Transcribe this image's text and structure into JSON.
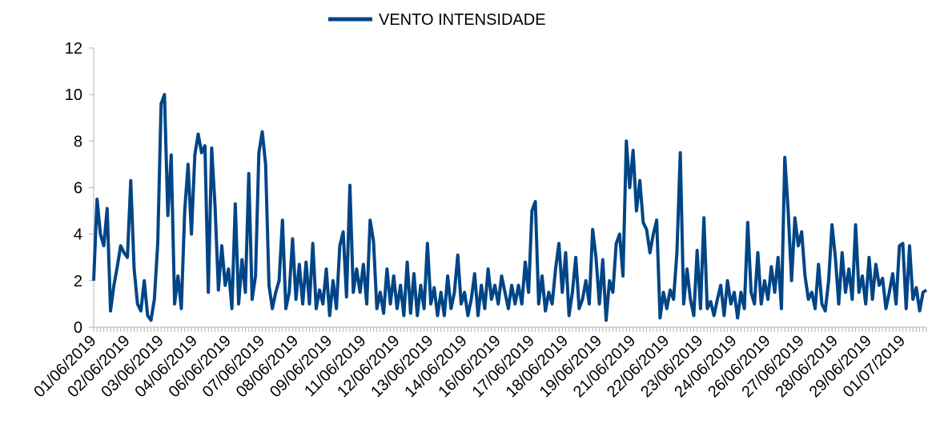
{
  "chart_data": {
    "type": "line",
    "categories": [
      "01/06/2019",
      null,
      null,
      null,
      null,
      null,
      null,
      null,
      null,
      null,
      "02/06/2019",
      null,
      null,
      null,
      null,
      null,
      null,
      null,
      null,
      null,
      "03/06/2019",
      null,
      null,
      null,
      null,
      null,
      null,
      null,
      null,
      null,
      "04/06/2019",
      null,
      null,
      null,
      null,
      null,
      null,
      null,
      null,
      null,
      "06/06/2019",
      null,
      null,
      null,
      null,
      null,
      null,
      null,
      null,
      null,
      "07/06/2019",
      null,
      null,
      null,
      null,
      null,
      null,
      null,
      null,
      null,
      "08/06/2019",
      null,
      null,
      null,
      null,
      null,
      null,
      null,
      null,
      null,
      "09/06/2019",
      null,
      null,
      null,
      null,
      null,
      null,
      null,
      null,
      null,
      "11/06/2019",
      null,
      null,
      null,
      null,
      null,
      null,
      null,
      null,
      null,
      "12/06/2019",
      null,
      null,
      null,
      null,
      null,
      null,
      null,
      null,
      null,
      "13/06/2019",
      null,
      null,
      null,
      null,
      null,
      null,
      null,
      null,
      null,
      "14/06/2019",
      null,
      null,
      null,
      null,
      null,
      null,
      null,
      null,
      null,
      "16/06/2019",
      null,
      null,
      null,
      null,
      null,
      null,
      null,
      null,
      null,
      "17/06/2019",
      null,
      null,
      null,
      null,
      null,
      null,
      null,
      null,
      null,
      "18/06/2019",
      null,
      null,
      null,
      null,
      null,
      null,
      null,
      null,
      null,
      "19/06/2019",
      null,
      null,
      null,
      null,
      null,
      null,
      null,
      null,
      null,
      "21/06/2019",
      null,
      null,
      null,
      null,
      null,
      null,
      null,
      null,
      null,
      "22/06/2019",
      null,
      null,
      null,
      null,
      null,
      null,
      null,
      null,
      null,
      "23/06/2019",
      null,
      null,
      null,
      null,
      null,
      null,
      null,
      null,
      null,
      "24/06/2019",
      null,
      null,
      null,
      null,
      null,
      null,
      null,
      null,
      null,
      "26/06/2019",
      null,
      null,
      null,
      null,
      null,
      null,
      null,
      null,
      null,
      "27/06/2019",
      null,
      null,
      null,
      null,
      null,
      null,
      null,
      null,
      null,
      "28/06/2019",
      null,
      null,
      null,
      null,
      null,
      null,
      null,
      null,
      null,
      "29/06/2019",
      null,
      null,
      null,
      null,
      null,
      null,
      null,
      null,
      null,
      "01/07/2019",
      null,
      null,
      null,
      null,
      null,
      null,
      null
    ],
    "series": [
      {
        "name": "VENTO INTENSIDADE",
        "color": "#004586",
        "values": [
          2,
          5.5,
          4,
          3.5,
          5.1,
          0.7,
          1.8,
          2.6,
          3.5,
          3.2,
          3.0,
          6.3,
          2.5,
          1.0,
          0.7,
          2.0,
          0.5,
          0.3,
          1.2,
          3.6,
          9.6,
          10.0,
          4.8,
          7.4,
          1.0,
          2.2,
          0.8,
          5.0,
          7.0,
          4.0,
          7.4,
          8.3,
          7.5,
          7.8,
          1.5,
          7.7,
          5.2,
          1.6,
          3.5,
          1.8,
          2.5,
          0.8,
          5.3,
          1.0,
          2.9,
          1.5,
          6.6,
          1.2,
          2.2,
          7.5,
          8.4,
          7.0,
          1.8,
          0.8,
          1.5,
          2.0,
          4.6,
          0.8,
          1.5,
          3.8,
          1.2,
          2.7,
          1.0,
          2.8,
          1.0,
          3.6,
          0.8,
          1.6,
          1.0,
          2.5,
          0.5,
          2.0,
          0.8,
          3.5,
          4.1,
          1.3,
          6.1,
          1.5,
          2.5,
          1.5,
          2.7,
          1.0,
          4.6,
          3.7,
          0.8,
          1.5,
          0.6,
          2.5,
          1.0,
          2.2,
          0.8,
          1.8,
          0.5,
          2.8,
          0.6,
          2.3,
          0.5,
          1.8,
          0.8,
          3.6,
          1.0,
          1.7,
          0.5,
          1.5,
          0.5,
          2.2,
          0.8,
          1.5,
          3.1,
          1.0,
          1.5,
          0.5,
          1.2,
          2.3,
          0.5,
          1.8,
          0.8,
          2.5,
          1.2,
          1.8,
          1.0,
          2.2,
          1.5,
          0.8,
          1.8,
          1.0,
          1.8,
          1.0,
          2.8,
          1.5,
          5.0,
          5.4,
          1.0,
          2.2,
          0.7,
          1.5,
          1.0,
          2.5,
          3.6,
          1.5,
          3.2,
          0.5,
          1.5,
          3.0,
          0.8,
          1.2,
          2.0,
          1.0,
          4.2,
          3.0,
          1.0,
          2.9,
          0.3,
          2.0,
          1.5,
          3.6,
          4.0,
          2.2,
          8.0,
          6.0,
          7.6,
          5.0,
          6.3,
          4.5,
          4.2,
          3.2,
          4.0,
          4.6,
          0.4,
          1.5,
          0.8,
          1.6,
          1.2,
          3.2,
          7.5,
          1.0,
          2.5,
          1.2,
          0.5,
          3.3,
          0.8,
          4.7,
          0.8,
          1.1,
          0.5,
          1.2,
          1.8,
          0.5,
          2.0,
          1.0,
          1.5,
          0.4,
          1.5,
          0.8,
          4.5,
          1.5,
          1.0,
          3.2,
          1.0,
          2.0,
          1.2,
          2.6,
          1.5,
          3.0,
          0.8,
          7.3,
          5.0,
          2.0,
          4.7,
          3.5,
          4.1,
          2.2,
          1.2,
          1.5,
          0.8,
          2.7,
          1.0,
          0.7,
          2.0,
          4.4,
          3.0,
          1.0,
          3.2,
          1.5,
          2.5,
          1.2,
          4.4,
          1.5,
          2.2,
          1.0,
          3.0,
          1.2,
          2.7,
          1.8,
          2.1,
          0.8,
          1.5,
          2.3,
          1.0,
          3.5,
          3.6,
          0.8,
          3.5,
          1.2,
          1.7,
          0.7,
          1.5,
          1.6
        ]
      }
    ],
    "ylim": [
      0,
      12
    ],
    "yticks": [
      0,
      2,
      4,
      6,
      8,
      10,
      12
    ],
    "grid": false,
    "legend": "top"
  }
}
